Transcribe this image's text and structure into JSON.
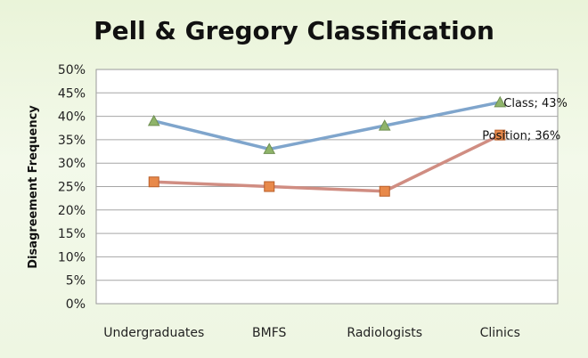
{
  "chart_data": {
    "type": "line",
    "title": "Pell & Gregory Classification",
    "xlabel": "",
    "ylabel": "Disagreement Frequency",
    "categories": [
      "Undergraduates",
      "BMFS",
      "Radiologists",
      "Clinics"
    ],
    "ylim": [
      0,
      50
    ],
    "yticks": [
      "0%",
      "5%",
      "10%",
      "15%",
      "20%",
      "25%",
      "30%",
      "35%",
      "40%",
      "45%",
      "50%"
    ],
    "grid": true,
    "legend": "none",
    "series": [
      {
        "name": "Class",
        "values": [
          39,
          33,
          38,
          43
        ],
        "color": "#7fa5cc",
        "marker": "triangle",
        "marker_color": "#8fb46a",
        "end_label": "Class; 43%"
      },
      {
        "name": "Position",
        "values": [
          26,
          25,
          24,
          36
        ],
        "color": "#d08d82",
        "marker": "square",
        "marker_color": "#e8894a",
        "end_label": "Position; 36%"
      }
    ]
  }
}
